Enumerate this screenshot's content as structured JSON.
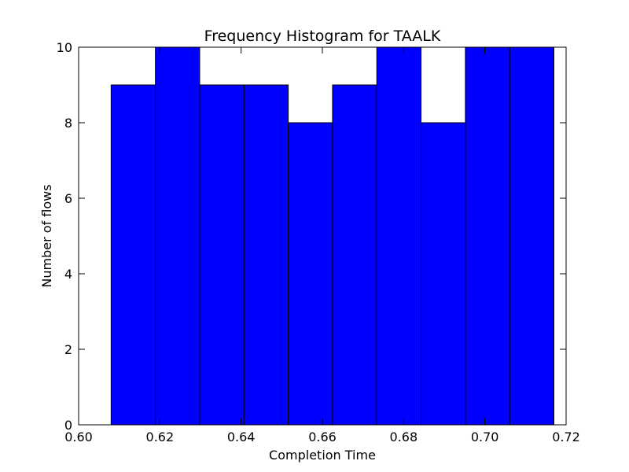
{
  "chart_data": {
    "type": "bar",
    "title": "Frequency Histogram for TAALK",
    "xlabel": "Completion Time",
    "ylabel": "Number of flows",
    "xlim": [
      0.6,
      0.72
    ],
    "ylim": [
      0,
      10
    ],
    "xticks": [
      "0.60",
      "0.62",
      "0.64",
      "0.66",
      "0.68",
      "0.70",
      "0.72"
    ],
    "yticks": [
      "0",
      "2",
      "4",
      "6",
      "8",
      "10"
    ],
    "bin_edges": [
      0.608,
      0.6189,
      0.6298,
      0.6407,
      0.6516,
      0.6625,
      0.6734,
      0.6843,
      0.6952,
      0.7061,
      0.717
    ],
    "values": [
      9,
      10,
      9,
      9,
      8,
      9,
      10,
      8,
      10,
      10
    ],
    "bar_color": "#0000ff",
    "edge_color": "#000000",
    "grid": false,
    "legend": "none"
  }
}
